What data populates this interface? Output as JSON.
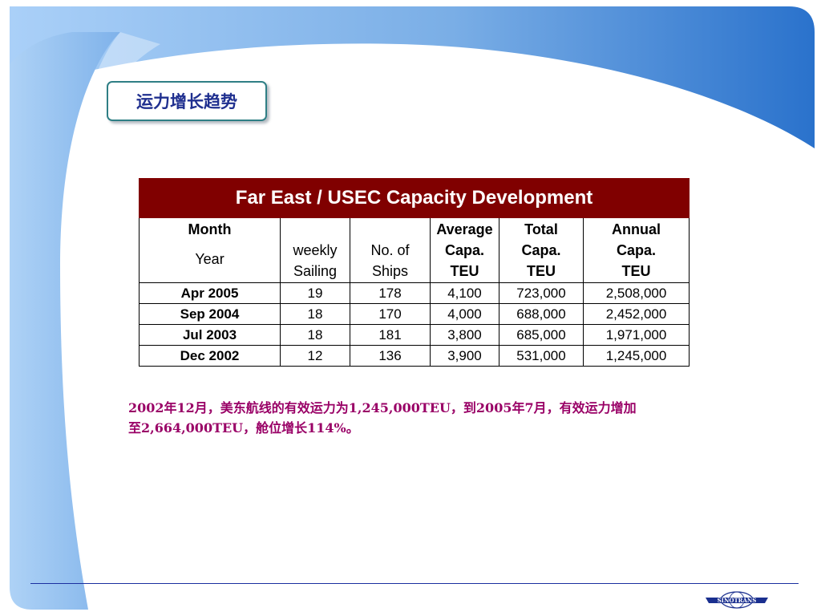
{
  "slide": {
    "title": "运力增长趋势",
    "accent_color": "#800000",
    "note_color": "#990066",
    "logo_text": "SINOTRANS"
  },
  "table": {
    "title": "Far East / USEC Capacity Development",
    "headers": {
      "month": "Month",
      "year": "Year",
      "weekly": [
        "weekly",
        "Sailing"
      ],
      "ships": [
        "No. of",
        "Ships"
      ],
      "avg": [
        "Average",
        "Capa.",
        "TEU"
      ],
      "total": [
        "Total",
        "Capa.",
        "TEU"
      ],
      "annual": [
        "Annual",
        "Capa.",
        "TEU"
      ]
    },
    "rows": [
      {
        "date": "Apr 2005",
        "weekly": "19",
        "ships": "178",
        "avg": "4,100",
        "total": "723,000",
        "annual": "2,508,000"
      },
      {
        "date": "Sep 2004",
        "weekly": "18",
        "ships": "170",
        "avg": "4,000",
        "total": "688,000",
        "annual": "2,452,000"
      },
      {
        "date": "Jul 2003",
        "weekly": "18",
        "ships": "181",
        "avg": "3,800",
        "total": "685,000",
        "annual": "1,971,000"
      },
      {
        "date": "Dec 2002",
        "weekly": "12",
        "ships": "136",
        "avg": "3,900",
        "total": "531,000",
        "annual": "1,245,000"
      }
    ]
  },
  "note": {
    "line1": "2002年12月，美东航线的有效运力为1,245,000TEU，到2005年7月，有效运力增加",
    "line2": "至2,664,000TEU，舱位增长114%。"
  }
}
